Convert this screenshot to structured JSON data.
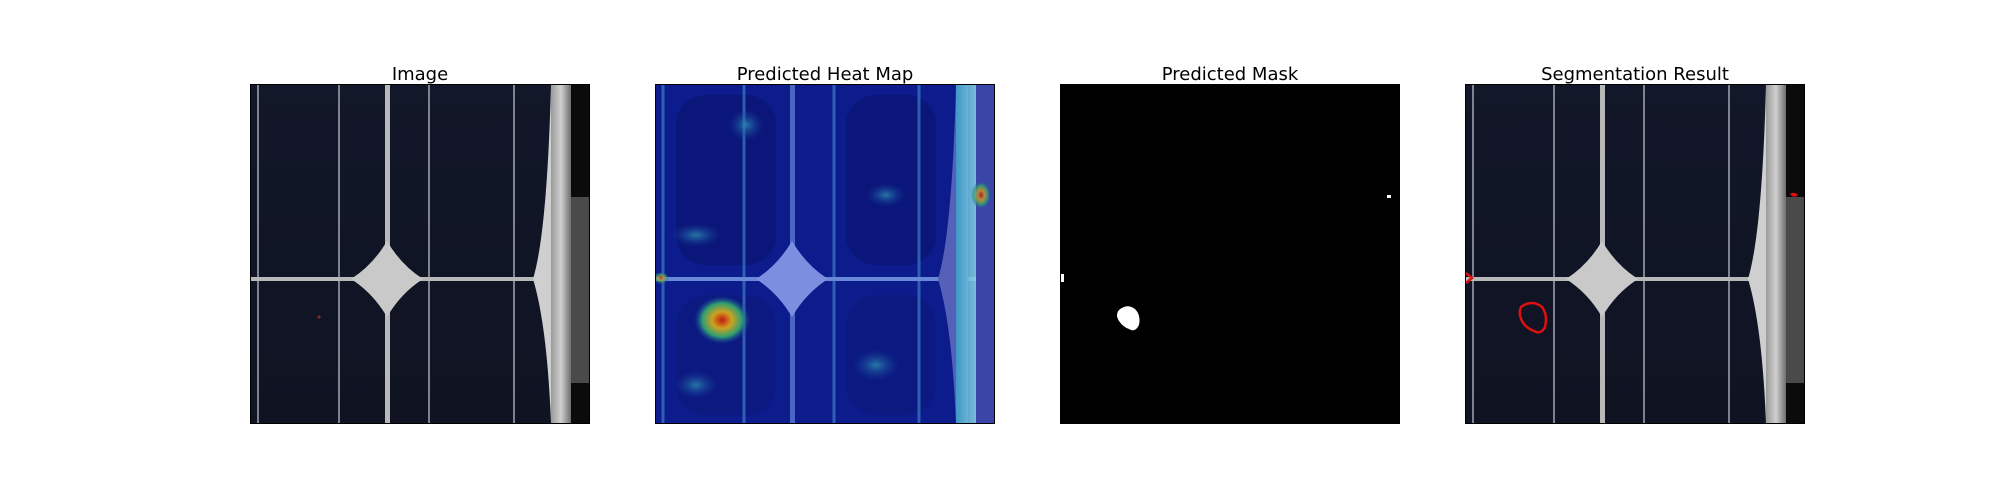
{
  "panels": [
    {
      "title": "Image"
    },
    {
      "title": "Predicted Heat Map"
    },
    {
      "title": "Predicted Mask"
    },
    {
      "title": "Segmentation Result"
    }
  ],
  "colors": {
    "cell_dark": "#101525",
    "busbar": "#c8c8c8",
    "heat_low": "#0a1a8a",
    "heat_mid": "#2fa0c0",
    "heat_hot": "#d02010",
    "mask_bg": "#000000",
    "mask_fg": "#ffffff",
    "contour": "#e01010"
  }
}
